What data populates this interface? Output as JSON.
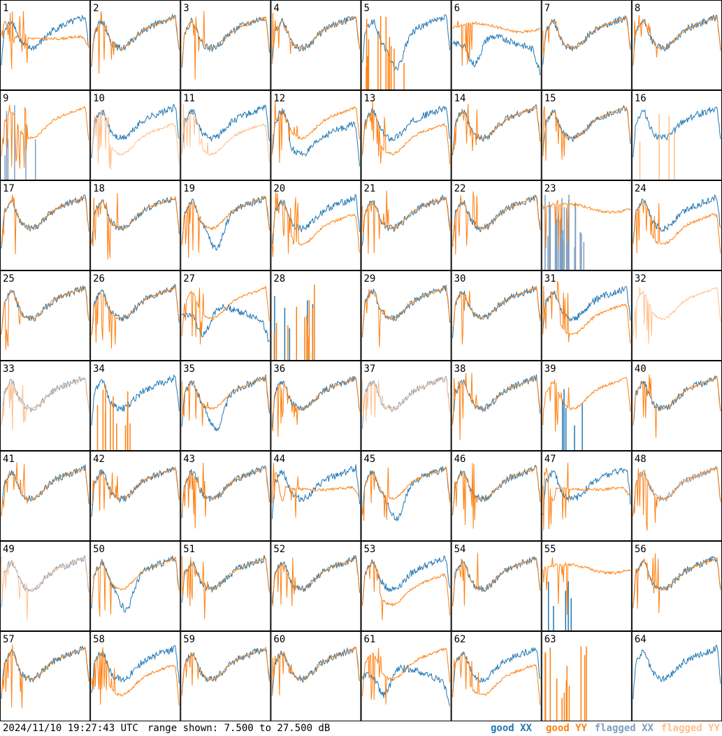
{
  "footer": {
    "timestamp": "2024/11/10 19:27:43 UTC",
    "range_text": "range shown: 7.500 to 27.500 dB"
  },
  "legend": {
    "good_xx": "good XX",
    "good_yy": "good YY",
    "flagged_xx": "flagged XX",
    "flagged_yy": "flagged YY"
  },
  "colors": {
    "good_xx": "#1f77b4",
    "good_yy": "#ff7f0e",
    "flagged_xx": "#7f9fbf",
    "flagged_yy": "#ffbf8c"
  },
  "chart_data": {
    "type": "line",
    "layout": "8x8 small multiples",
    "panel_labels": [
      "1",
      "2",
      "3",
      "4",
      "5",
      "6",
      "7",
      "8",
      "9",
      "10",
      "11",
      "12",
      "13",
      "14",
      "15",
      "16",
      "17",
      "18",
      "19",
      "20",
      "21",
      "22",
      "23",
      "24",
      "25",
      "26",
      "27",
      "28",
      "29",
      "30",
      "31",
      "32",
      "33",
      "34",
      "35",
      "36",
      "37",
      "38",
      "39",
      "40",
      "41",
      "42",
      "43",
      "44",
      "45",
      "46",
      "47",
      "48",
      "49",
      "50",
      "51",
      "52",
      "53",
      "54",
      "55",
      "56",
      "57",
      "58",
      "59",
      "60",
      "61",
      "62",
      "63",
      "64"
    ],
    "ylim": [
      7.5,
      27.5
    ],
    "yunit": "dB",
    "series": [
      {
        "name": "good XX",
        "key": "good_xx"
      },
      {
        "name": "good YY",
        "key": "good_yy"
      },
      {
        "name": "flagged XX",
        "key": "flagged_xx"
      },
      {
        "name": "flagged YY",
        "key": "flagged_yy"
      }
    ],
    "panels": {
      "1": {
        "xx": "good",
        "yy": "good",
        "yy_shape": "rolloff",
        "noise": "med"
      },
      "2": {
        "xx": "good",
        "yy": "good"
      },
      "3": {
        "xx": "good",
        "yy": "good"
      },
      "4": {
        "xx": "good",
        "yy": "good"
      },
      "5": {
        "xx": "good",
        "yy": "spikes",
        "xx_shape": "dip"
      },
      "6": {
        "xx": "good",
        "yy": "good",
        "xx_shape": "spiky_dip",
        "yy_shape": "flat_high"
      },
      "7": {
        "xx": "good",
        "yy": "good"
      },
      "8": {
        "xx": "good",
        "yy": "good"
      },
      "9": {
        "xx": "flagged_spikes",
        "yy": "good"
      },
      "10": {
        "xx": "good",
        "yy": "flagged",
        "yy_shape": "low_rolloff"
      },
      "11": {
        "xx": "good",
        "yy": "flagged",
        "yy_shape": "low_rolloff"
      },
      "12": {
        "xx": "good",
        "yy": "good",
        "xx_shape": "low_rolloff"
      },
      "13": {
        "xx": "good",
        "yy": "good",
        "yy_shape": "low_rolloff"
      },
      "14": {
        "xx": "good",
        "yy": "good"
      },
      "15": {
        "xx": "good",
        "yy": "good"
      },
      "16": {
        "xx": "good",
        "yy": "flagged_spikes"
      },
      "17": {
        "xx": "good",
        "yy": "good"
      },
      "18": {
        "xx": "good",
        "yy": "good"
      },
      "19": {
        "xx": "good",
        "yy": "good",
        "xx_shape": "dip"
      },
      "20": {
        "xx": "good",
        "yy": "good",
        "yy_shape": "low_rolloff"
      },
      "21": {
        "xx": "good",
        "yy": "good"
      },
      "22": {
        "xx": "good",
        "yy": "good"
      },
      "23": {
        "xx": "flagged_noise",
        "yy": "good",
        "yy_shape": "flat_high"
      },
      "24": {
        "xx": "good",
        "yy": "good",
        "yy_shape": "low_rolloff"
      },
      "25": {
        "xx": "good",
        "yy": "good"
      },
      "26": {
        "xx": "good",
        "yy": "good"
      },
      "27": {
        "xx": "good",
        "yy": "good",
        "xx_shape": "spiky_dip"
      },
      "28": {
        "xx": "spikes",
        "yy": "spikes"
      },
      "29": {
        "xx": "good",
        "yy": "good"
      },
      "30": {
        "xx": "good",
        "yy": "good"
      },
      "31": {
        "xx": "good",
        "yy": "good",
        "yy_shape": "low_rolloff"
      },
      "32": {
        "xx": "none",
        "yy": "flagged"
      },
      "33": {
        "xx": "flagged",
        "yy": "flagged"
      },
      "34": {
        "xx": "good",
        "yy": "spikes"
      },
      "35": {
        "xx": "good",
        "yy": "good",
        "xx_shape": "dip"
      },
      "36": {
        "xx": "good",
        "yy": "good"
      },
      "37": {
        "xx": "flagged",
        "yy": "flagged"
      },
      "38": {
        "xx": "good",
        "yy": "good"
      },
      "39": {
        "xx": "spikes",
        "yy": "good"
      },
      "40": {
        "xx": "good",
        "yy": "good"
      },
      "41": {
        "xx": "good",
        "yy": "good"
      },
      "42": {
        "xx": "good",
        "yy": "good"
      },
      "43": {
        "xx": "good",
        "yy": "good"
      },
      "44": {
        "xx": "good",
        "yy": "good",
        "yy_shape": "rolloff"
      },
      "45": {
        "xx": "good",
        "yy": "good",
        "xx_shape": "dip"
      },
      "46": {
        "xx": "good",
        "yy": "good"
      },
      "47": {
        "xx": "good",
        "yy": "good",
        "yy_shape": "rolloff"
      },
      "48": {
        "xx": "flagged",
        "yy": "good"
      },
      "49": {
        "xx": "flagged",
        "yy": "flagged"
      },
      "50": {
        "xx": "good",
        "yy": "good",
        "xx_shape": "dip"
      },
      "51": {
        "xx": "good",
        "yy": "good"
      },
      "52": {
        "xx": "good",
        "yy": "good"
      },
      "53": {
        "xx": "good",
        "yy": "good",
        "yy_shape": "low_rolloff"
      },
      "54": {
        "xx": "good",
        "yy": "good"
      },
      "55": {
        "xx": "spikes",
        "yy": "good",
        "yy_shape": "flat_high"
      },
      "56": {
        "xx": "good",
        "yy": "good"
      },
      "57": {
        "xx": "good",
        "yy": "good"
      },
      "58": {
        "xx": "good",
        "yy": "good",
        "yy_shape": "low_rolloff"
      },
      "59": {
        "xx": "good",
        "yy": "good"
      },
      "60": {
        "xx": "good",
        "yy": "good"
      },
      "61": {
        "xx": "good",
        "yy": "good",
        "xx_shape": "spiky_dip"
      },
      "62": {
        "xx": "good",
        "yy": "good",
        "yy_shape": "low_rolloff"
      },
      "63": {
        "xx": "none",
        "yy": "spikes"
      },
      "64": {
        "xx": "good",
        "yy": "none"
      }
    }
  }
}
